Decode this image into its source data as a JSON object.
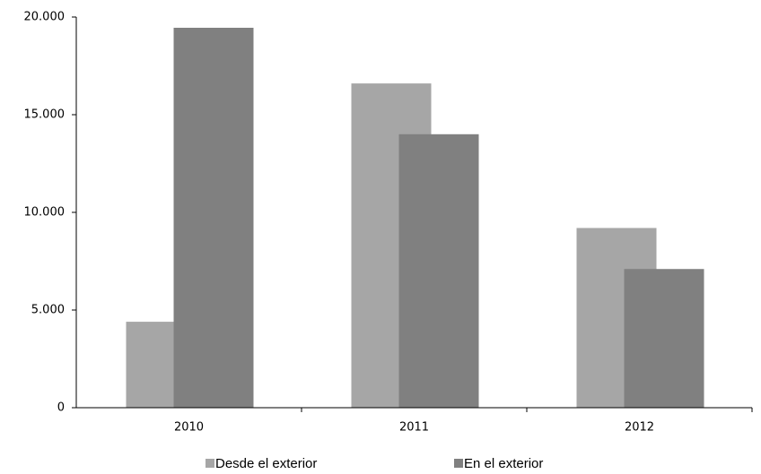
{
  "chart_data": {
    "type": "bar",
    "categories": [
      "2010",
      "2011",
      "2012"
    ],
    "series": [
      {
        "name": "Desde el exterior",
        "color": "#a6a6a6",
        "values": [
          4400,
          16600,
          9200
        ]
      },
      {
        "name": "En el exterior",
        "color": "#808080",
        "values": [
          19450,
          14000,
          7100
        ]
      }
    ],
    "ylim": [
      0,
      20000
    ],
    "yticks": [
      0,
      {
        "value": 5000,
        "label": "5.000"
      },
      {
        "value": 10000,
        "label": "10.000"
      },
      {
        "value": 15000,
        "label": "15.000"
      },
      {
        "value": 20000,
        "label": "20.000"
      }
    ],
    "grid": false
  }
}
